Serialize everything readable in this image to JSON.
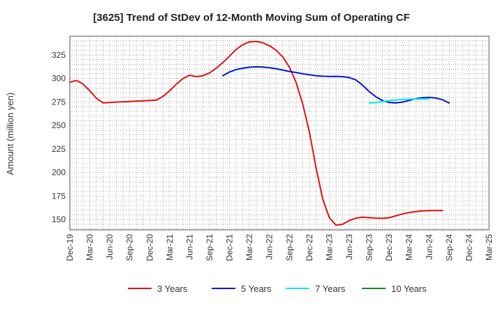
{
  "chart_data": {
    "type": "line",
    "title": "[3625]  Trend of StDev of 12-Month Moving Sum of Operating CF",
    "xlabel": "",
    "ylabel": "Amount (million yen)",
    "ylim": [
      139,
      345
    ],
    "yticks": [
      150,
      175,
      200,
      225,
      250,
      275,
      300,
      325
    ],
    "x_range": [
      "2019-12",
      "2025-03"
    ],
    "x_ticks": [
      "Dec-19",
      "Mar-20",
      "Jun-20",
      "Sep-20",
      "Dec-20",
      "Mar-21",
      "Jun-21",
      "Sep-21",
      "Dec-21",
      "Mar-22",
      "Jun-22",
      "Sep-22",
      "Dec-22",
      "Mar-23",
      "Jun-23",
      "Sep-23",
      "Dec-23",
      "Mar-24",
      "Jun-24",
      "Sep-24",
      "Dec-24",
      "Mar-25"
    ],
    "grid": true,
    "legend_position": "bottom",
    "series": [
      {
        "name": "3 Years",
        "color": "#dd1111",
        "start": "2019-12",
        "values": [
          296,
          298,
          294,
          287,
          279,
          274,
          274.5,
          275,
          275.3,
          275.6,
          276,
          276.3,
          276.6,
          277,
          281,
          287,
          294,
          300,
          303.5,
          302,
          303,
          306,
          311,
          317,
          324,
          331,
          336,
          339,
          339.5,
          338,
          335,
          330,
          323,
          312,
          296,
          273,
          243,
          205,
          172,
          152,
          144,
          145,
          149,
          151.5,
          152.5,
          152,
          151.5,
          151.3,
          152,
          154,
          156,
          157.5,
          158.5,
          159.3,
          159.6,
          159.6,
          159.5
        ]
      },
      {
        "name": "5 Years",
        "color": "#0018cc",
        "start": "2021-11",
        "values": [
          303,
          307,
          309.5,
          311,
          312,
          312.5,
          312.2,
          311.5,
          310.5,
          309,
          307.5,
          306.5,
          305,
          304,
          303,
          302.5,
          302.2,
          302.3,
          302,
          301,
          298.5,
          293,
          286,
          280.5,
          276.5,
          274.5,
          274,
          275,
          276.7,
          278.5,
          279.6,
          280,
          279.3,
          277.5,
          274
        ]
      },
      {
        "name": "7 Years",
        "color": "#00e5ff",
        "start": "2023-09",
        "values": [
          274,
          274.5,
          275.5,
          276.5,
          277.2,
          277.7,
          278,
          278.2,
          278.3,
          278
        ]
      },
      {
        "name": "10 Years",
        "color": "#1a8a1a",
        "start": "2024-06",
        "values": []
      }
    ]
  }
}
